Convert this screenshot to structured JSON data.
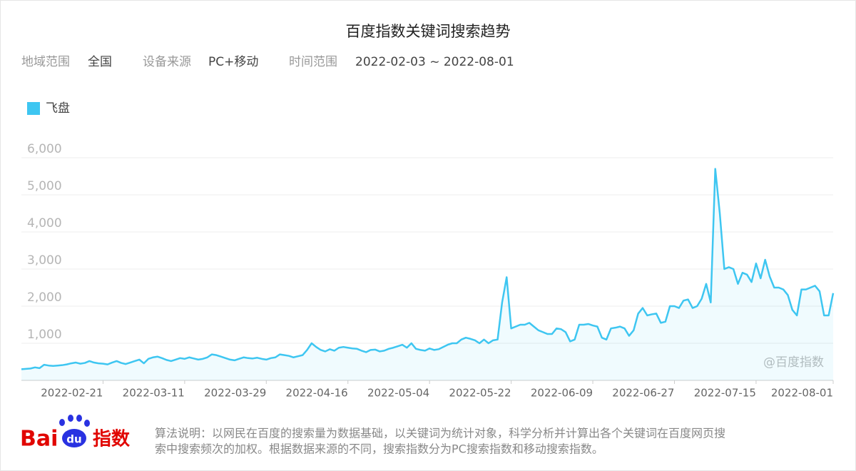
{
  "chart_data": {
    "type": "line",
    "title": "百度指数关键词搜索趋势",
    "filters": [
      {
        "label": "地域范围",
        "value": "全国"
      },
      {
        "label": "设备来源",
        "value": "PC+移动"
      },
      {
        "label": "时间范围",
        "value": "2022-02-03 ~ 2022-08-01"
      }
    ],
    "watermark": "@百度指数",
    "logo": {
      "left": "Bai",
      "paw": "du",
      "right": "指数"
    },
    "note": [
      "算法说明：以网民在百度的搜索量为数据基础，以关键词为统计对象，科学分析并计算出各个关键词在百度网页搜",
      "索中搜索频次的加权。根据数据来源的不同，搜索指数分为PC搜索指数和移动搜索指数。"
    ],
    "legend": "top-left",
    "grid": true,
    "ylim": [
      0,
      6000
    ],
    "yticks": [
      {
        "value": 1000,
        "label": "1,000"
      },
      {
        "value": 2000,
        "label": "2,000"
      },
      {
        "value": 3000,
        "label": "3,000"
      },
      {
        "value": 4000,
        "label": "4,000"
      },
      {
        "value": 5000,
        "label": "5,000"
      },
      {
        "value": 6000,
        "label": "6,000"
      }
    ],
    "xticks": [
      "2022-02-21",
      "2022-03-11",
      "2022-03-29",
      "2022-04-16",
      "2022-05-04",
      "2022-05-22",
      "2022-06-09",
      "2022-06-27",
      "2022-07-15",
      "2022-08-01"
    ],
    "x": [
      "2022-02-03",
      "2022-02-04",
      "2022-02-05",
      "2022-02-06",
      "2022-02-07",
      "2022-02-08",
      "2022-02-09",
      "2022-02-10",
      "2022-02-11",
      "2022-02-12",
      "2022-02-13",
      "2022-02-14",
      "2022-02-15",
      "2022-02-16",
      "2022-02-17",
      "2022-02-18",
      "2022-02-19",
      "2022-02-20",
      "2022-02-21",
      "2022-02-22",
      "2022-02-23",
      "2022-02-24",
      "2022-02-25",
      "2022-02-26",
      "2022-02-27",
      "2022-02-28",
      "2022-03-01",
      "2022-03-02",
      "2022-03-03",
      "2022-03-04",
      "2022-03-05",
      "2022-03-06",
      "2022-03-07",
      "2022-03-08",
      "2022-03-09",
      "2022-03-10",
      "2022-03-11",
      "2022-03-12",
      "2022-03-13",
      "2022-03-14",
      "2022-03-15",
      "2022-03-16",
      "2022-03-17",
      "2022-03-18",
      "2022-03-19",
      "2022-03-20",
      "2022-03-21",
      "2022-03-22",
      "2022-03-23",
      "2022-03-24",
      "2022-03-25",
      "2022-03-26",
      "2022-03-27",
      "2022-03-28",
      "2022-03-29",
      "2022-03-30",
      "2022-03-31",
      "2022-04-01",
      "2022-04-02",
      "2022-04-03",
      "2022-04-04",
      "2022-04-05",
      "2022-04-06",
      "2022-04-07",
      "2022-04-08",
      "2022-04-09",
      "2022-04-10",
      "2022-04-11",
      "2022-04-12",
      "2022-04-13",
      "2022-04-14",
      "2022-04-15",
      "2022-04-16",
      "2022-04-17",
      "2022-04-18",
      "2022-04-19",
      "2022-04-20",
      "2022-04-21",
      "2022-04-22",
      "2022-04-23",
      "2022-04-24",
      "2022-04-25",
      "2022-04-26",
      "2022-04-27",
      "2022-04-28",
      "2022-04-29",
      "2022-04-30",
      "2022-05-01",
      "2022-05-02",
      "2022-05-03",
      "2022-05-04",
      "2022-05-05",
      "2022-05-06",
      "2022-05-07",
      "2022-05-08",
      "2022-05-09",
      "2022-05-10",
      "2022-05-11",
      "2022-05-12",
      "2022-05-13",
      "2022-05-14",
      "2022-05-15",
      "2022-05-16",
      "2022-05-17",
      "2022-05-18",
      "2022-05-19",
      "2022-05-20",
      "2022-05-21",
      "2022-05-22",
      "2022-05-23",
      "2022-05-24",
      "2022-05-25",
      "2022-05-26",
      "2022-05-27",
      "2022-05-28",
      "2022-05-29",
      "2022-05-30",
      "2022-05-31",
      "2022-06-01",
      "2022-06-02",
      "2022-06-03",
      "2022-06-04",
      "2022-06-05",
      "2022-06-06",
      "2022-06-07",
      "2022-06-08",
      "2022-06-09",
      "2022-06-10",
      "2022-06-11",
      "2022-06-12",
      "2022-06-13",
      "2022-06-14",
      "2022-06-15",
      "2022-06-16",
      "2022-06-17",
      "2022-06-18",
      "2022-06-19",
      "2022-06-20",
      "2022-06-21",
      "2022-06-22",
      "2022-06-23",
      "2022-06-24",
      "2022-06-25",
      "2022-06-26",
      "2022-06-27",
      "2022-06-28",
      "2022-06-29",
      "2022-06-30",
      "2022-07-01",
      "2022-07-02",
      "2022-07-03",
      "2022-07-04",
      "2022-07-05",
      "2022-07-06",
      "2022-07-07",
      "2022-07-08",
      "2022-07-09",
      "2022-07-10",
      "2022-07-11",
      "2022-07-12",
      "2022-07-13",
      "2022-07-14",
      "2022-07-15",
      "2022-07-16",
      "2022-07-17",
      "2022-07-18",
      "2022-07-19",
      "2022-07-20",
      "2022-07-21",
      "2022-07-22",
      "2022-07-23",
      "2022-07-24",
      "2022-07-25",
      "2022-07-26",
      "2022-07-27",
      "2022-07-28",
      "2022-07-29",
      "2022-07-30",
      "2022-07-31",
      "2022-08-01"
    ],
    "series": [
      {
        "name": "飞盘",
        "color": "#3ec6f1",
        "values": [
          300,
          310,
          320,
          350,
          330,
          420,
          400,
          390,
          400,
          410,
          430,
          460,
          480,
          450,
          470,
          520,
          480,
          460,
          450,
          430,
          480,
          520,
          470,
          440,
          480,
          520,
          560,
          460,
          580,
          620,
          640,
          600,
          550,
          520,
          560,
          600,
          580,
          620,
          590,
          560,
          580,
          620,
          700,
          680,
          640,
          600,
          560,
          540,
          580,
          620,
          600,
          590,
          610,
          580,
          560,
          600,
          620,
          700,
          680,
          660,
          620,
          650,
          680,
          820,
          1000,
          900,
          820,
          780,
          840,
          800,
          880,
          900,
          880,
          860,
          850,
          800,
          760,
          820,
          830,
          780,
          800,
          850,
          880,
          920,
          960,
          880,
          1000,
          850,
          820,
          800,
          860,
          820,
          840,
          900,
          960,
          1000,
          1000,
          1100,
          1150,
          1120,
          1080,
          1000,
          1100,
          1000,
          1080,
          1100,
          2100,
          2780,
          1400,
          1450,
          1500,
          1500,
          1550,
          1450,
          1350,
          1300,
          1250,
          1250,
          1400,
          1380,
          1300,
          1050,
          1100,
          1500,
          1500,
          1520,
          1480,
          1450,
          1150,
          1100,
          1400,
          1420,
          1450,
          1400,
          1200,
          1350,
          1800,
          1950,
          1750,
          1780,
          1800,
          1550,
          1580,
          2000,
          2000,
          1950,
          2150,
          2180,
          1950,
          2000,
          2200,
          2600,
          2100,
          5700,
          4500,
          3000,
          3050,
          3000,
          2600,
          2900,
          2850,
          2650,
          3150,
          2750,
          3250,
          2800,
          2500,
          2500,
          2450,
          2300,
          1900,
          1750,
          2450,
          2450,
          2500,
          2550,
          2400,
          1750,
          1750,
          2350
        ]
      }
    ]
  }
}
